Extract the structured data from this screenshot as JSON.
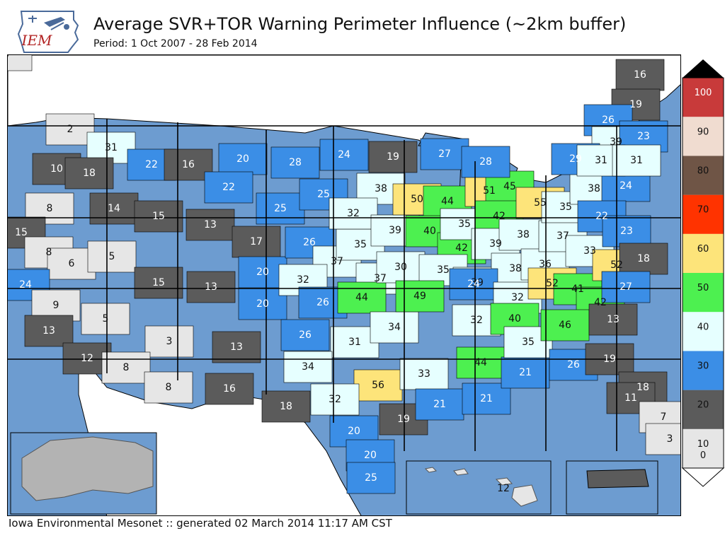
{
  "header": {
    "title": "Average SVR+TOR Warning Perimeter Influence (~2km buffer)",
    "subtitle": "Period: 1 Oct 2007 - 28 Feb 2014",
    "logo_text": "IEM"
  },
  "footer": {
    "text": "Iowa Environmental Mesonet :: generated 02 March 2014 11:17 AM CST"
  },
  "legend": {
    "levels": [
      {
        "label": "0",
        "color": "#e6e6e6"
      },
      {
        "label": "10",
        "color": "#5b5b5b"
      },
      {
        "label": "20",
        "color": "#3b8ee6"
      },
      {
        "label": "30",
        "color": "#e6ffff"
      },
      {
        "label": "40",
        "color": "#4df050"
      },
      {
        "label": "50",
        "color": "#fde47a"
      },
      {
        "label": "60",
        "color": "#ff3300"
      },
      {
        "label": "70",
        "color": "#6f5546"
      },
      {
        "label": "80",
        "color": "#f0dcd0"
      },
      {
        "label": "90",
        "color": "#c83a3a"
      },
      {
        "label": "100",
        "color": ""
      }
    ]
  },
  "map_data": {
    "regions": [
      {
        "value": "2"
      },
      {
        "value": "31"
      },
      {
        "value": "10"
      },
      {
        "value": "18"
      },
      {
        "value": "22"
      },
      {
        "value": "16"
      },
      {
        "value": "20"
      },
      {
        "value": "28"
      },
      {
        "value": "24"
      },
      {
        "value": "19"
      },
      {
        "value": "27"
      },
      {
        "value": "8"
      },
      {
        "value": "14"
      },
      {
        "value": "15"
      },
      {
        "value": "22"
      },
      {
        "value": "13"
      },
      {
        "value": "25"
      },
      {
        "value": "25"
      },
      {
        "value": "17"
      },
      {
        "value": "15"
      },
      {
        "value": "8"
      },
      {
        "value": "6"
      },
      {
        "value": "5"
      },
      {
        "value": "24"
      },
      {
        "value": "15"
      },
      {
        "value": "9"
      },
      {
        "value": "13"
      },
      {
        "value": "20"
      },
      {
        "value": "20"
      },
      {
        "value": "26"
      },
      {
        "value": "37"
      },
      {
        "value": "35"
      },
      {
        "value": "32"
      },
      {
        "value": "37"
      },
      {
        "value": "26"
      },
      {
        "value": "44"
      },
      {
        "value": "5"
      },
      {
        "value": "13"
      },
      {
        "value": "12"
      },
      {
        "value": "3"
      },
      {
        "value": "8"
      },
      {
        "value": "8"
      },
      {
        "value": "13"
      },
      {
        "value": "16"
      },
      {
        "value": "26"
      },
      {
        "value": "31"
      },
      {
        "value": "34"
      },
      {
        "value": "34"
      },
      {
        "value": "56"
      },
      {
        "value": "32"
      },
      {
        "value": "18"
      },
      {
        "value": "20"
      },
      {
        "value": "20"
      },
      {
        "value": "25"
      },
      {
        "value": "19"
      },
      {
        "value": "38"
      },
      {
        "value": "32"
      },
      {
        "value": "39"
      },
      {
        "value": "50"
      },
      {
        "value": "44"
      },
      {
        "value": "40"
      },
      {
        "value": "42"
      },
      {
        "value": "35"
      },
      {
        "value": "30"
      },
      {
        "value": "35"
      },
      {
        "value": "49"
      },
      {
        "value": "39"
      },
      {
        "value": "51"
      },
      {
        "value": "45"
      },
      {
        "value": "28"
      },
      {
        "value": "42"
      },
      {
        "value": "39"
      },
      {
        "value": "38"
      },
      {
        "value": "38"
      },
      {
        "value": "36"
      },
      {
        "value": "37"
      },
      {
        "value": "55"
      },
      {
        "value": "35"
      },
      {
        "value": "38"
      },
      {
        "value": "33"
      },
      {
        "value": "24"
      },
      {
        "value": "24"
      },
      {
        "value": "32"
      },
      {
        "value": "32"
      },
      {
        "value": "40"
      },
      {
        "value": "33"
      },
      {
        "value": "44"
      },
      {
        "value": "21"
      },
      {
        "value": "21"
      },
      {
        "value": "21"
      },
      {
        "value": "35"
      },
      {
        "value": "52"
      },
      {
        "value": "41"
      },
      {
        "value": "42"
      },
      {
        "value": "46"
      },
      {
        "value": "26"
      },
      {
        "value": "22"
      },
      {
        "value": "23"
      },
      {
        "value": "52"
      },
      {
        "value": "18"
      },
      {
        "value": "27"
      },
      {
        "value": "13"
      },
      {
        "value": "19"
      },
      {
        "value": "18"
      },
      {
        "value": "11"
      },
      {
        "value": "7"
      },
      {
        "value": "3"
      },
      {
        "value": "16"
      },
      {
        "value": "19"
      },
      {
        "value": "26"
      },
      {
        "value": "39"
      },
      {
        "value": "23"
      },
      {
        "value": "29"
      },
      {
        "value": "31"
      },
      {
        "value": "31"
      },
      {
        "value": "7"
      },
      {
        "value": "12"
      }
    ]
  }
}
